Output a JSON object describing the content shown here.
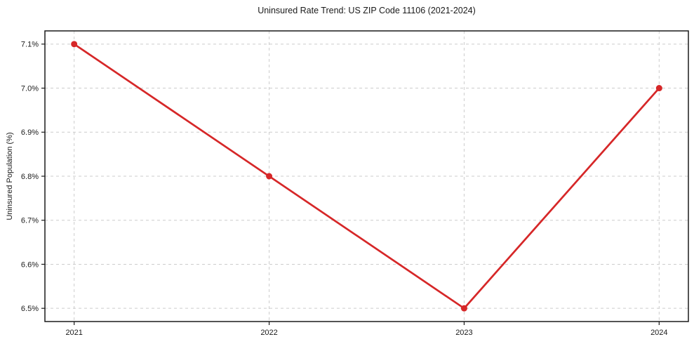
{
  "chart_data": {
    "type": "line",
    "title": "Uninsured Rate Trend: US ZIP Code 11106 (2021-2024)",
    "xlabel": "",
    "ylabel": "Uninsured Population (%)",
    "x": [
      2021,
      2022,
      2023,
      2024
    ],
    "values": [
      7.1,
      6.8,
      6.5,
      7.0
    ],
    "xtick_labels": [
      "2021",
      "2022",
      "2023",
      "2024"
    ],
    "yticks": [
      6.5,
      6.6,
      6.7,
      6.8,
      6.9,
      7.0,
      7.1
    ],
    "ytick_labels": [
      "6.5%",
      "6.6%",
      "6.7%",
      "6.8%",
      "6.9%",
      "7.0%",
      "7.1%"
    ],
    "xlim": [
      2020.85,
      2024.15
    ],
    "ylim": [
      6.47,
      7.13
    ],
    "grid": true,
    "grid_style": "dashed",
    "legend": false,
    "marker": "circle",
    "line_color": "#d62728",
    "grid_color": "#cccccc",
    "axis_color": "#1a1a1a",
    "text_color": "#1a1a1a"
  }
}
